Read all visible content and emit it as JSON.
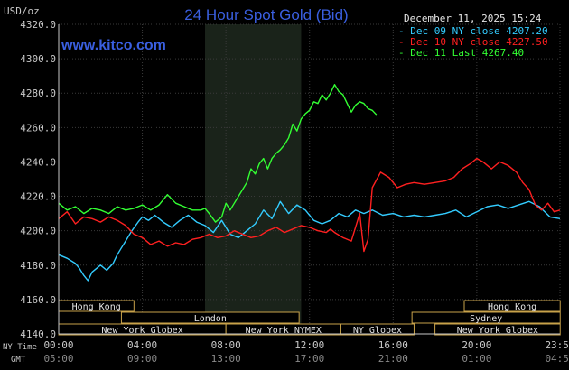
{
  "header": {
    "unit_label": "USD/oz",
    "title": "24 Hour Spot Gold (Bid)",
    "timestamp": "December 11, 2025 15:24",
    "site": "www.kitco.com"
  },
  "colors": {
    "background": "#000000",
    "title": "#3a5fe0",
    "site": "#3a5fe0",
    "axis": "#c8c8c8",
    "grid": "#3a3a3a",
    "session_band": "#1a231a",
    "dec09": "#33ccff",
    "dec10": "#ff2020",
    "dec11": "#33ff33",
    "market_box_border": "#c8a24a",
    "market_box_text": "#e6e6e6"
  },
  "time_axis": {
    "ny_label": "NY Time",
    "gmt_label": "GMT",
    "ny_ticks": [
      "00:00",
      "04:00",
      "08:00",
      "12:00",
      "16:00",
      "20:00",
      "23:59"
    ],
    "gmt_ticks": [
      "05:00",
      "09:00",
      "13:00",
      "17:00",
      "21:00",
      "01:00",
      "04:59"
    ]
  },
  "markets": [
    {
      "name": "Hong Kong",
      "start": 0,
      "end": 3.6,
      "row": 0
    },
    {
      "name": "Hong Kong",
      "start": 19.4,
      "end": 23.99,
      "row": 0
    },
    {
      "name": "London",
      "start": 3.0,
      "end": 11.5,
      "row": 1
    },
    {
      "name": "Sydney",
      "start": 16.9,
      "end": 23.99,
      "row": 1
    },
    {
      "name": "New York Globex",
      "start": 0,
      "end": 8.0,
      "row": 2
    },
    {
      "name": "New York NYMEX",
      "start": 8.0,
      "end": 13.5,
      "row": 2
    },
    {
      "name": "NY Globex",
      "start": 13.5,
      "end": 17.0,
      "row": 2
    },
    {
      "name": "New York Globex",
      "start": 18.0,
      "end": 23.99,
      "row": 2
    }
  ],
  "chart_data": {
    "type": "line",
    "title": "24 Hour Spot Gold (Bid)",
    "ylabel": "USD/oz",
    "ylim": [
      4140,
      4320
    ],
    "yticks": [
      "4320.0",
      "4300.0",
      "4280.0",
      "4260.0",
      "4240.0",
      "4220.0",
      "4200.0",
      "4180.0",
      "4160.0",
      "4140.0"
    ],
    "xlim": [
      0,
      23.98
    ],
    "x_unit": "NY hours",
    "highlight": {
      "start": 7.0,
      "end": 11.6
    },
    "legend_position": "top-right",
    "series": [
      {
        "name": "Dec 09 NY close",
        "label": "- Dec 09 NY close 4207.20",
        "color_key": "dec09",
        "x": [
          0,
          0.4,
          0.8,
          1.0,
          1.2,
          1.4,
          1.6,
          1.8,
          2.0,
          2.3,
          2.6,
          2.8,
          3.0,
          3.2,
          3.5,
          3.8,
          4.0,
          4.3,
          4.6,
          5.0,
          5.4,
          5.8,
          6.2,
          6.6,
          7.0,
          7.4,
          7.8,
          8.2,
          8.6,
          9.0,
          9.4,
          9.8,
          10.2,
          10.6,
          11.0,
          11.4,
          11.8,
          12.2,
          12.6,
          13.0,
          13.4,
          13.8,
          14.2,
          14.6,
          15.0,
          15.5,
          16.0,
          16.5,
          17.0,
          17.5,
          18.0,
          18.5,
          19.0,
          19.5,
          20.0,
          20.5,
          21.0,
          21.5,
          22.0,
          22.5,
          23.0,
          23.5,
          23.98
        ],
        "y": [
          4186,
          4184,
          4181,
          4178,
          4174,
          4171,
          4176,
          4178,
          4180,
          4177,
          4181,
          4186,
          4190,
          4194,
          4200,
          4205,
          4208,
          4206,
          4209,
          4205,
          4202,
          4206,
          4209,
          4205,
          4203,
          4199,
          4206,
          4198,
          4196,
          4200,
          4204,
          4212,
          4207,
          4217,
          4210,
          4215,
          4212,
          4206,
          4204,
          4206,
          4210,
          4208,
          4212,
          4210,
          4212,
          4209,
          4210,
          4208,
          4209,
          4208,
          4209,
          4210,
          4212,
          4208,
          4211,
          4214,
          4215,
          4213,
          4215,
          4217,
          4214,
          4208,
          4207
        ]
      },
      {
        "name": "Dec 10 NY close",
        "label": "- Dec 10 NY close 4227.50",
        "color_key": "dec10",
        "x": [
          0,
          0.4,
          0.8,
          1.2,
          1.6,
          2.0,
          2.4,
          2.8,
          3.2,
          3.6,
          4.0,
          4.4,
          4.8,
          5.2,
          5.6,
          6.0,
          6.4,
          6.8,
          7.2,
          7.6,
          8.0,
          8.4,
          8.8,
          9.2,
          9.6,
          10.0,
          10.4,
          10.8,
          11.2,
          11.6,
          12.0,
          12.4,
          12.8,
          13.0,
          13.2,
          13.6,
          14.0,
          14.4,
          14.6,
          14.8,
          15.0,
          15.4,
          15.8,
          16.2,
          16.6,
          17.0,
          17.5,
          18.0,
          18.5,
          18.9,
          19.3,
          19.7,
          20.0,
          20.3,
          20.7,
          21.1,
          21.5,
          21.9,
          22.2,
          22.5,
          22.8,
          23.1,
          23.4,
          23.7,
          23.98
        ],
        "y": [
          4207,
          4211,
          4204,
          4208,
          4207,
          4205,
          4208,
          4206,
          4203,
          4198,
          4196,
          4192,
          4194,
          4191,
          4193,
          4192,
          4195,
          4196,
          4198,
          4196,
          4197,
          4200,
          4198,
          4196,
          4197,
          4200,
          4202,
          4199,
          4201,
          4203,
          4202,
          4200,
          4199,
          4201,
          4199,
          4196,
          4194,
          4210,
          4188,
          4195,
          4225,
          4234,
          4231,
          4225,
          4227,
          4228,
          4227,
          4228,
          4229,
          4231,
          4236,
          4239,
          4242,
          4240,
          4236,
          4240,
          4238,
          4234,
          4228,
          4224,
          4215,
          4212,
          4216,
          4211,
          4212
        ]
      },
      {
        "name": "Dec 11 Last",
        "label": "- Dec 11 Last 4267.40",
        "color_key": "dec11",
        "x": [
          0,
          0.4,
          0.8,
          1.2,
          1.6,
          2.0,
          2.4,
          2.8,
          3.2,
          3.6,
          4.0,
          4.4,
          4.8,
          5.2,
          5.6,
          6.0,
          6.4,
          6.8,
          7.0,
          7.2,
          7.5,
          7.8,
          8.0,
          8.2,
          8.4,
          8.6,
          8.8,
          9.0,
          9.2,
          9.4,
          9.6,
          9.8,
          10.0,
          10.2,
          10.4,
          10.6,
          10.8,
          11.0,
          11.2,
          11.4,
          11.6,
          11.8,
          12.0,
          12.2,
          12.4,
          12.6,
          12.8,
          13.0,
          13.2,
          13.4,
          13.6,
          13.8,
          14.0,
          14.2,
          14.4,
          14.6,
          14.8,
          15.0,
          15.2
        ],
        "y": [
          4216,
          4212,
          4214,
          4210,
          4213,
          4212,
          4210,
          4214,
          4212,
          4213,
          4215,
          4212,
          4215,
          4221,
          4216,
          4214,
          4212,
          4212,
          4213,
          4210,
          4205,
          4208,
          4216,
          4212,
          4216,
          4220,
          4224,
          4228,
          4236,
          4233,
          4239,
          4242,
          4236,
          4242,
          4245,
          4247,
          4250,
          4254,
          4262,
          4258,
          4265,
          4268,
          4270,
          4275,
          4274,
          4279,
          4276,
          4280,
          4285,
          4281,
          4279,
          4274,
          4269,
          4273,
          4275,
          4274,
          4271,
          4270,
          4267.4
        ]
      }
    ]
  }
}
